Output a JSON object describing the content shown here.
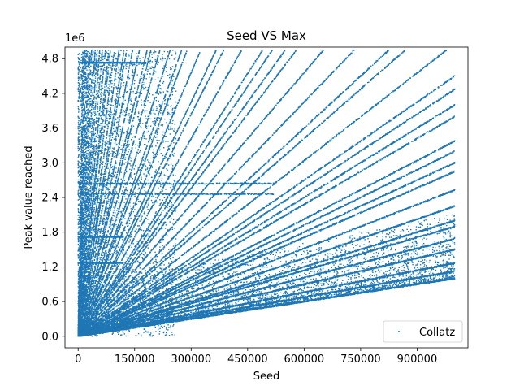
{
  "chart_data": {
    "type": "scatter",
    "title": "Seed VS Max",
    "xlabel": "Seed",
    "ylabel": "Peak value reached",
    "y_offset_label": "1e6",
    "xlim": [
      -35000,
      1035000
    ],
    "ylim": [
      -0.2,
      5.0
    ],
    "y_scale_multiplier": 1000000,
    "x_ticks": [
      0,
      150000,
      300000,
      450000,
      600000,
      750000,
      900000
    ],
    "x_tick_labels": [
      "0",
      "150000",
      "300000",
      "450000",
      "600000",
      "750000",
      "900000"
    ],
    "y_ticks": [
      0.0,
      0.6,
      1.2,
      1.8,
      2.4,
      3.0,
      3.6,
      4.2,
      4.8
    ],
    "y_tick_labels": [
      "0.0",
      "0.6",
      "1.2",
      "1.8",
      "2.4",
      "3.0",
      "3.6",
      "4.2",
      "4.8"
    ],
    "grid": false,
    "legend_position": "lower-right",
    "series": [
      {
        "name": "Collatz",
        "color": "#1f77b4",
        "marker": "point",
        "seed_max": 1000000,
        "peak_cap": 4950000,
        "lower_envelope": [
          [
            0,
            0.0
          ],
          [
            1000000,
            1.0
          ]
        ],
        "ray_slopes": [
          1.0,
          1.125,
          1.266,
          1.5,
          1.688,
          1.898,
          2.0,
          2.25,
          2.53,
          2.85,
          3.0,
          3.2,
          3.375,
          3.8,
          4.0,
          4.27,
          4.5,
          5.06,
          5.7,
          6.0,
          6.75,
          7.6,
          8.54,
          9.0,
          9.6,
          10.1,
          11.4,
          12.8,
          13.5,
          15.2,
          17.1,
          18.0,
          20.25,
          22.8,
          25.6,
          27.0,
          30.4,
          34.2,
          38.4,
          40.5,
          45.6,
          51.3,
          57.7,
          60.75,
          68.3,
          76.9,
          86.5,
          97.3,
          109.5,
          123.2,
          138.6,
          156.0,
          175.4,
          197.4,
          222.0,
          249.8,
          281.0,
          316.1,
          355.6,
          400.0
        ],
        "horizontal_bands": [
          1.27,
          1.72,
          2.46,
          2.64,
          4.73
        ]
      }
    ]
  }
}
